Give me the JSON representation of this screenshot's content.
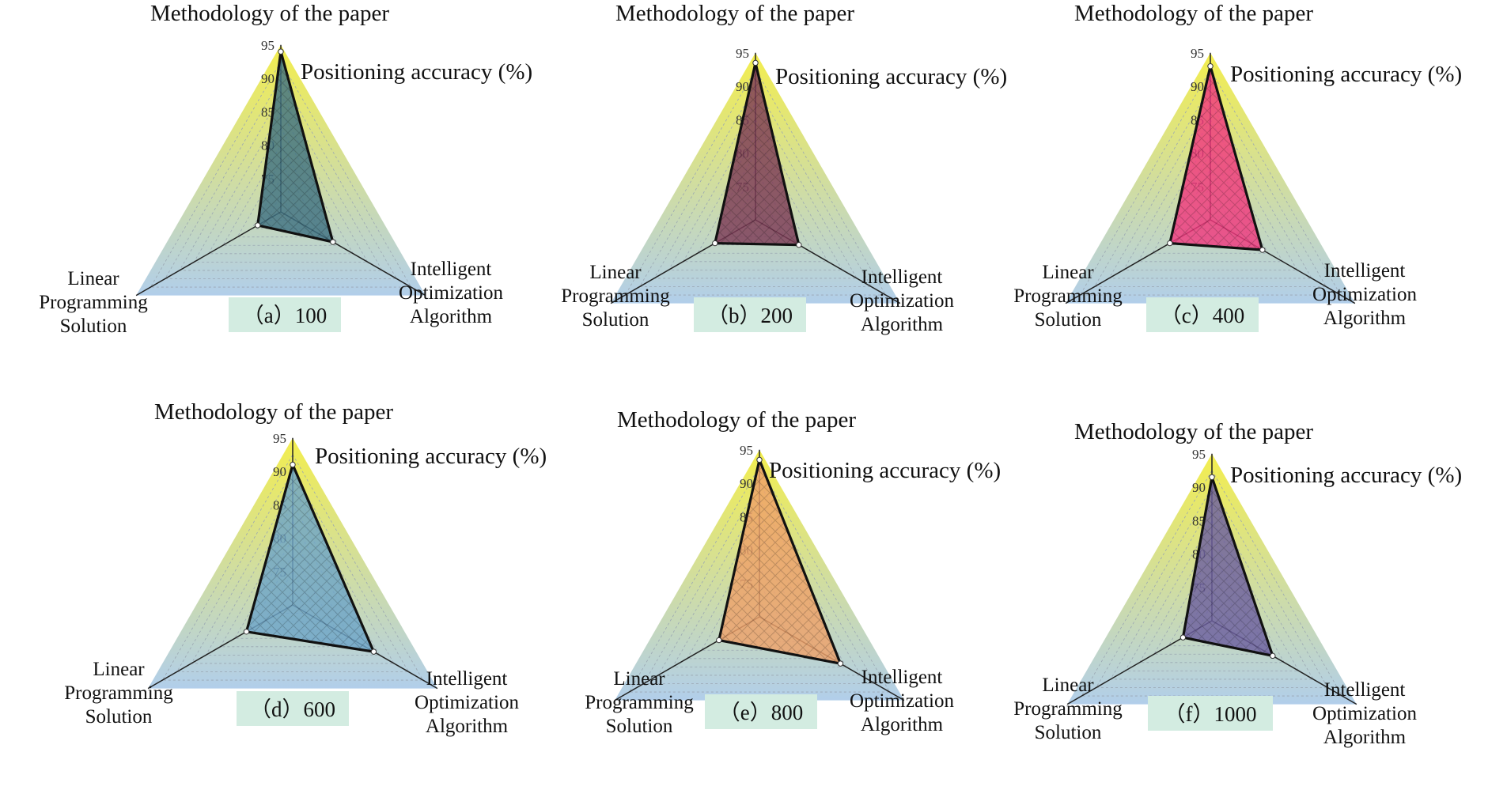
{
  "colors": {
    "outer_top": "#f2ec3a",
    "outer_bottom": "#a9c9e8",
    "caption_bg": "#d3ece1",
    "polygon_edge": "#111111",
    "grid": "#9aa6b2"
  },
  "labels": {
    "top": "Methodology of  the paper",
    "accuracy": "Positioning accuracy (%)",
    "left_lines": [
      "Linear",
      "Programming",
      "Solution"
    ],
    "right_lines": [
      "Intelligent",
      "Optimization",
      "Algorithm"
    ]
  },
  "chart_data": [
    {
      "type": "radar",
      "caption": "（a）100",
      "axes": [
        "Methodology of  the paper",
        "Intelligent Optimization Algorithm",
        "Linear Programming Solution"
      ],
      "ticks": [
        "75",
        "80",
        "85",
        "90",
        "95"
      ],
      "range": [
        70,
        95
      ],
      "values": [
        94,
        79,
        74
      ],
      "fill": "#3f7183"
    },
    {
      "type": "radar",
      "caption": "（b）200",
      "axes": [
        "Methodology of  the paper",
        "Intelligent Optimization Algorithm",
        "Linear Programming Solution"
      ],
      "ticks": [
        "75",
        "80",
        "85",
        "90",
        "95"
      ],
      "range": [
        70,
        95
      ],
      "values": [
        93.5,
        77.5,
        77
      ],
      "fill": "#7d3b57"
    },
    {
      "type": "radar",
      "caption": "（c）400",
      "axes": [
        "Methodology of  the paper",
        "Intelligent Optimization Algorithm",
        "Linear Programming Solution"
      ],
      "ticks": [
        "75",
        "80",
        "85",
        "90",
        "95"
      ],
      "range": [
        70,
        95
      ],
      "values": [
        93,
        79,
        77
      ],
      "fill": "#f0387f"
    },
    {
      "type": "radar",
      "caption": "（d）600",
      "axes": [
        "Methodology of  the paper",
        "Intelligent Optimization Algorithm",
        "Linear Programming Solution"
      ],
      "ticks": [
        "75",
        "80",
        "85",
        "90",
        "95"
      ],
      "range": [
        70,
        95
      ],
      "values": [
        91,
        84,
        78
      ],
      "fill": "#6ea5c8"
    },
    {
      "type": "radar",
      "caption": "（e）800",
      "axes": [
        "Methodology of  the paper",
        "Intelligent Optimization Algorithm",
        "Linear Programming Solution"
      ],
      "ticks": [
        "75",
        "80",
        "85",
        "90",
        "95"
      ],
      "range": [
        70,
        95
      ],
      "values": [
        93.5,
        84,
        77
      ],
      "fill": "#eea16a"
    },
    {
      "type": "radar",
      "caption": "（f）1000",
      "axes": [
        "Methodology of  the paper",
        "Intelligent Optimization Algorithm",
        "Linear Programming Solution"
      ],
      "ticks": [
        "75",
        "80",
        "85",
        "90",
        "95"
      ],
      "range": [
        70,
        95
      ],
      "values": [
        91.5,
        80.5,
        75
      ],
      "fill": "#6c5fa0"
    }
  ]
}
